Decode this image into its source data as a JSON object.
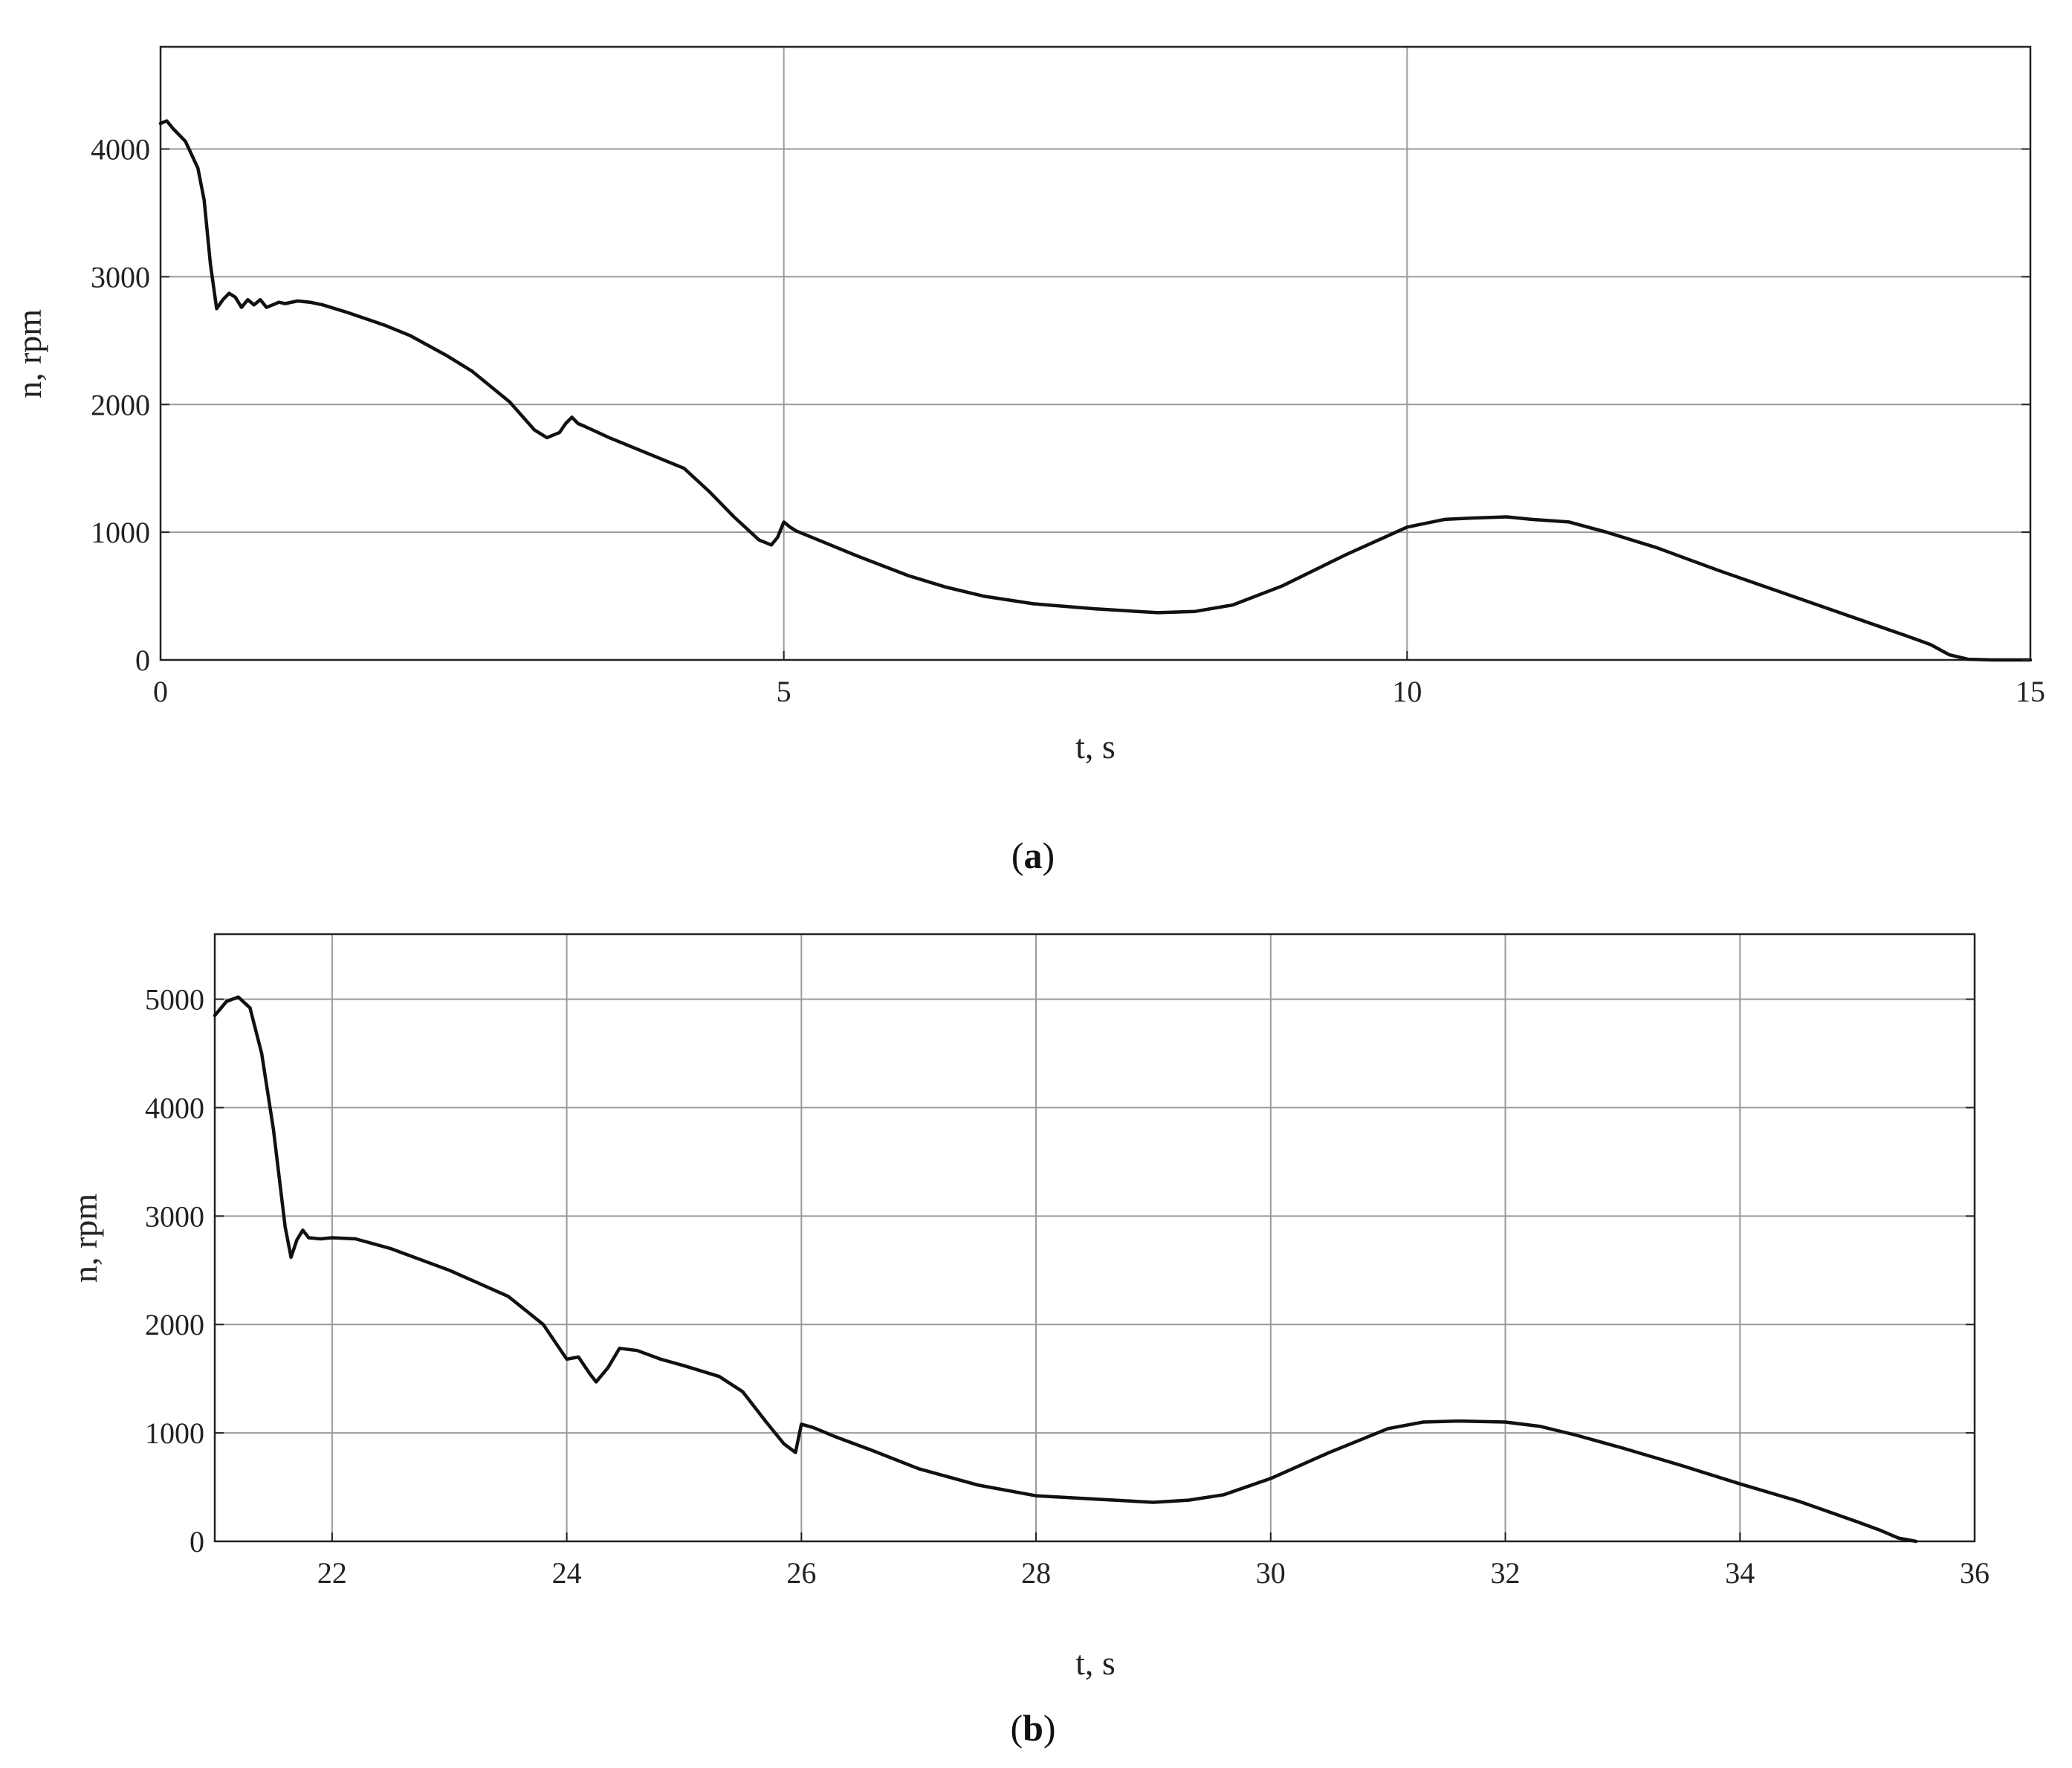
{
  "chart_data": [
    {
      "type": "line",
      "caption": "a",
      "xlabel": "t, s",
      "ylabel": "n, rpm",
      "xlim": [
        0,
        15
      ],
      "ylim": [
        0,
        4800
      ],
      "xticks": [
        0,
        5,
        10,
        15
      ],
      "yticks": [
        0,
        1000,
        2000,
        3000,
        4000
      ],
      "grid": true,
      "series": [
        {
          "x": [
            0,
            0.05,
            0.1,
            0.2,
            0.3,
            0.35,
            0.4,
            0.45,
            0.5,
            0.55,
            0.6,
            0.65,
            0.7,
            0.75,
            0.8,
            0.85,
            0.9,
            0.95,
            1.0,
            1.1,
            1.2,
            1.3,
            1.5,
            1.8,
            2.0,
            2.3,
            2.5,
            2.8,
            3.0,
            3.1,
            3.2,
            3.25,
            3.3,
            3.35,
            3.4,
            3.6,
            3.8,
            4.0,
            4.2,
            4.4,
            4.6,
            4.8,
            4.9,
            4.95,
            5.0,
            5.05,
            5.1,
            5.3,
            5.6,
            6.0,
            6.3,
            6.6,
            7.0,
            7.5,
            8.0,
            8.3,
            8.6,
            9.0,
            9.5,
            10.0,
            10.3,
            10.5,
            10.8,
            11.0,
            11.3,
            11.6,
            12.0,
            12.5,
            13.0,
            13.5,
            14.0,
            14.2,
            14.35,
            14.5,
            14.7,
            15.0
          ],
          "y": [
            4200,
            4220,
            4160,
            4060,
            3850,
            3600,
            3100,
            2750,
            2820,
            2870,
            2840,
            2760,
            2820,
            2780,
            2820,
            2760,
            2780,
            2800,
            2790,
            2810,
            2800,
            2780,
            2720,
            2620,
            2540,
            2380,
            2260,
            2020,
            1800,
            1740,
            1780,
            1850,
            1900,
            1850,
            1830,
            1740,
            1660,
            1580,
            1500,
            1320,
            1120,
            940,
            900,
            960,
            1080,
            1040,
            1010,
            930,
            810,
            660,
            570,
            500,
            440,
            400,
            370,
            380,
            430,
            580,
            820,
            1040,
            1100,
            1110,
            1120,
            1100,
            1080,
            1000,
            880,
            700,
            530,
            360,
            190,
            120,
            40,
            5,
            0,
            0
          ]
        }
      ]
    },
    {
      "type": "line",
      "caption": "b",
      "xlabel": "t, s",
      "ylabel": "n, rpm",
      "xlim": [
        21,
        36
      ],
      "ylim": [
        0,
        5600
      ],
      "xticks": [
        22,
        24,
        26,
        28,
        30,
        32,
        34,
        36
      ],
      "yticks": [
        0,
        1000,
        2000,
        3000,
        4000,
        5000
      ],
      "grid": true,
      "series": [
        {
          "x": [
            21.0,
            21.1,
            21.2,
            21.3,
            21.4,
            21.5,
            21.6,
            21.65,
            21.7,
            21.75,
            21.8,
            21.9,
            22.0,
            22.2,
            22.5,
            23.0,
            23.5,
            23.8,
            24.0,
            24.1,
            24.2,
            24.25,
            24.35,
            24.45,
            24.6,
            24.8,
            25.0,
            25.3,
            25.5,
            25.7,
            25.85,
            25.95,
            26.0,
            26.1,
            26.3,
            26.6,
            27.0,
            27.5,
            28.0,
            28.5,
            29.0,
            29.3,
            29.6,
            30.0,
            30.5,
            31.0,
            31.3,
            31.6,
            32.0,
            32.3,
            32.6,
            33.0,
            33.5,
            34.0,
            34.5,
            35.0,
            35.2,
            35.35,
            35.5
          ],
          "y": [
            4850,
            4980,
            5020,
            4920,
            4500,
            3800,
            2900,
            2620,
            2780,
            2870,
            2800,
            2790,
            2800,
            2790,
            2700,
            2500,
            2260,
            2000,
            1680,
            1700,
            1540,
            1470,
            1600,
            1780,
            1760,
            1680,
            1620,
            1520,
            1380,
            1100,
            900,
            820,
            1080,
            1050,
            960,
            840,
            670,
            520,
            420,
            390,
            360,
            380,
            430,
            580,
            820,
            1040,
            1100,
            1110,
            1100,
            1060,
            980,
            860,
            700,
            530,
            370,
            180,
            100,
            30,
            0
          ]
        }
      ]
    }
  ]
}
